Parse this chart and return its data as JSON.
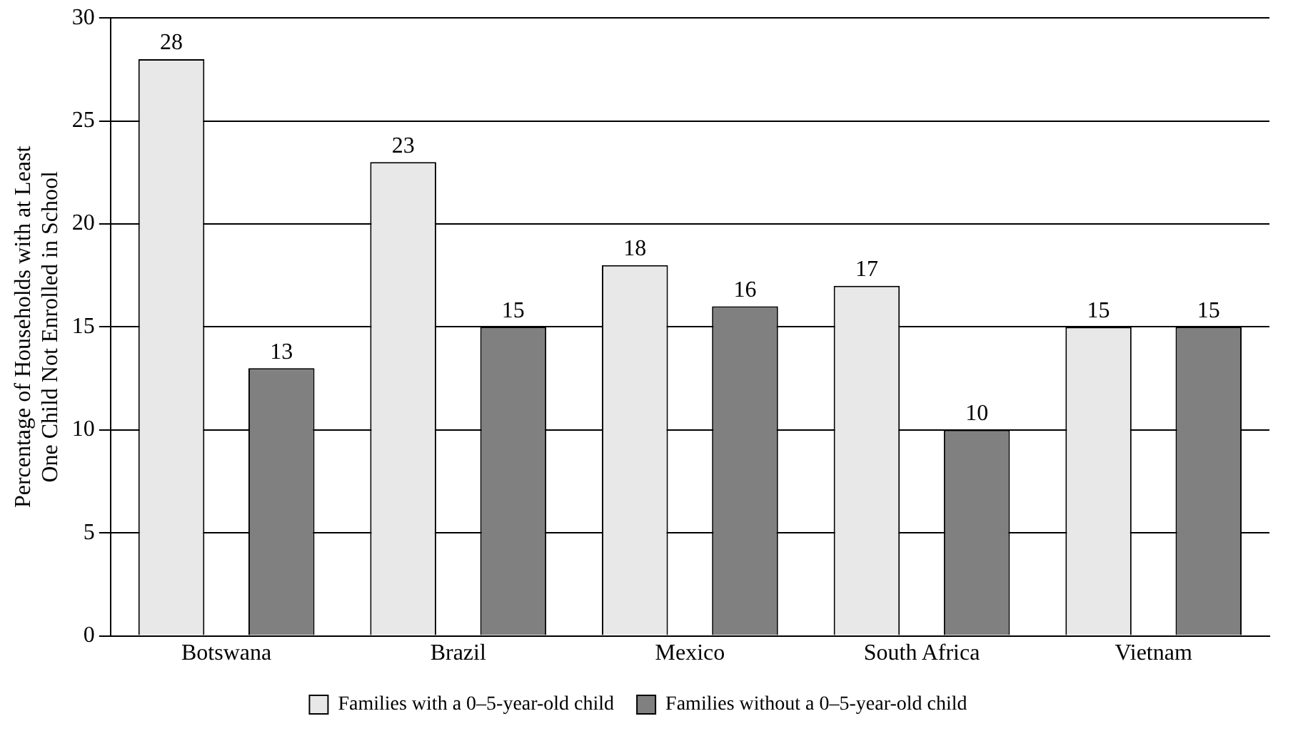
{
  "chart_data": {
    "type": "bar",
    "ylabel": "Percentage of Households with at Least One Child Not Enrolled in School",
    "categories": [
      "Botswana",
      "Brazil",
      "Mexico",
      "South Africa",
      "Vietnam"
    ],
    "series": [
      {
        "name": "Families with a 0–5-year-old child",
        "color": "#e8e8e8",
        "values": [
          28,
          23,
          18,
          17,
          15
        ]
      },
      {
        "name": "Families without a 0–5-year-old child",
        "color": "#808080",
        "values": [
          13,
          15,
          16,
          10,
          15
        ]
      }
    ],
    "ylim": [
      0,
      30
    ],
    "yticks": [
      0,
      5,
      10,
      15,
      20,
      25,
      30
    ],
    "grid": "y",
    "legend": "bottom",
    "data_labels": true
  }
}
